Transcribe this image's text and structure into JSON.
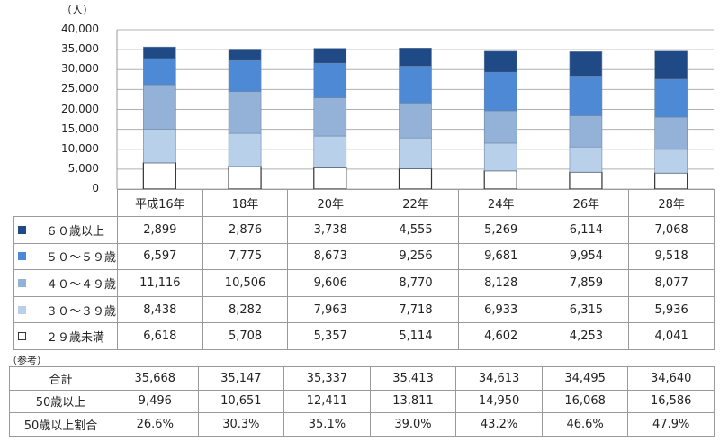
{
  "chart_data": {
    "type": "bar",
    "stacked": true,
    "ylabel": "（人）",
    "ylim": [
      0,
      40000
    ],
    "yticks": [
      "0",
      "5,000",
      "10,000",
      "15,000",
      "20,000",
      "25,000",
      "30,000",
      "35,000",
      "40,000"
    ],
    "grid": true,
    "categories": [
      "平成16年",
      "18年",
      "20年",
      "22年",
      "24年",
      "26年",
      "28年"
    ],
    "series": [
      {
        "name": "２９歳未満",
        "color": "#ffffff",
        "values": [
          6618,
          5708,
          5357,
          5114,
          4602,
          4253,
          4041
        ],
        "labels": [
          "6,618",
          "5,708",
          "5,357",
          "5,114",
          "4,602",
          "4,253",
          "4,041"
        ]
      },
      {
        "name": "３０～３９歳",
        "color": "#b9d0ea",
        "values": [
          8438,
          8282,
          7963,
          7718,
          6933,
          6315,
          5936
        ],
        "labels": [
          "8,438",
          "8,282",
          "7,963",
          "7,718",
          "6,933",
          "6,315",
          "5,936"
        ]
      },
      {
        "name": "４０～４９歳",
        "color": "#94b1d8",
        "values": [
          11116,
          10506,
          9606,
          8770,
          8128,
          7859,
          8077
        ],
        "labels": [
          "11,116",
          "10,506",
          "9,606",
          "8,770",
          "8,128",
          "7,859",
          "8,077"
        ]
      },
      {
        "name": "５０～５９歳",
        "color": "#4d89d4",
        "values": [
          6597,
          7775,
          8673,
          9256,
          9681,
          9954,
          9518
        ],
        "labels": [
          "6,597",
          "7,775",
          "8,673",
          "9,256",
          "9,681",
          "9,954",
          "9,518"
        ]
      },
      {
        "name": "６０歳以上",
        "color": "#1f4a85",
        "values": [
          2899,
          2876,
          3738,
          4555,
          5269,
          6114,
          7068
        ],
        "labels": [
          "2,899",
          "2,876",
          "3,738",
          "4,555",
          "5,269",
          "6,114",
          "7,068"
        ]
      }
    ],
    "legend": "table-left"
  },
  "reference": {
    "title": "（参考）",
    "rows": [
      {
        "label": "合計",
        "values": [
          "35,668",
          "35,147",
          "35,337",
          "35,413",
          "34,613",
          "34,495",
          "34,640"
        ]
      },
      {
        "label": "50歳以上",
        "values": [
          "9,496",
          "10,651",
          "12,411",
          "13,811",
          "14,950",
          "16,068",
          "16,586"
        ]
      },
      {
        "label": "50歳以上割合",
        "values": [
          "26.6%",
          "30.3%",
          "35.1%",
          "39.0%",
          "43.2%",
          "46.6%",
          "47.9%"
        ]
      }
    ]
  }
}
